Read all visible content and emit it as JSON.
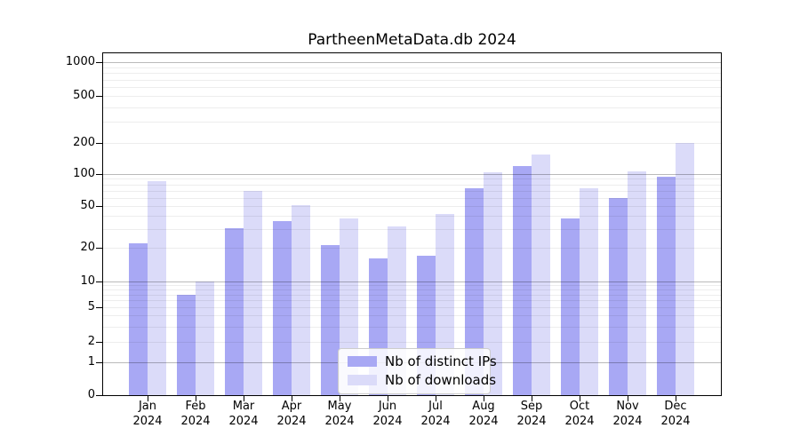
{
  "chart_data": {
    "type": "bar",
    "title": "PartheenMetaData.db 2024",
    "year_label": "2024",
    "categories": [
      "Jan",
      "Feb",
      "Mar",
      "Apr",
      "May",
      "Jun",
      "Jul",
      "Aug",
      "Sep",
      "Oct",
      "Nov",
      "Dec"
    ],
    "series": [
      {
        "name": "Nb of distinct IPs",
        "color": "#a8a8f4",
        "values": [
          22,
          7,
          31,
          36,
          21,
          16,
          17,
          73,
          120,
          38,
          60,
          94
        ]
      },
      {
        "name": "Nb of downloads",
        "color": "#dbdbf9",
        "values": [
          85,
          10,
          70,
          51,
          38,
          32,
          42,
          103,
          155,
          74,
          106,
          200
        ]
      }
    ],
    "y_axis": {
      "scale": "log-with-zero",
      "ticks": [
        0,
        1,
        2,
        5,
        10,
        20,
        50,
        100,
        200,
        500,
        1000
      ],
      "range": [
        0,
        1000
      ]
    },
    "x_axis": {
      "tick_label_line2": "2024"
    },
    "grid": "major-and-minor-horizontal",
    "legend_position": "lower-center-inside"
  }
}
